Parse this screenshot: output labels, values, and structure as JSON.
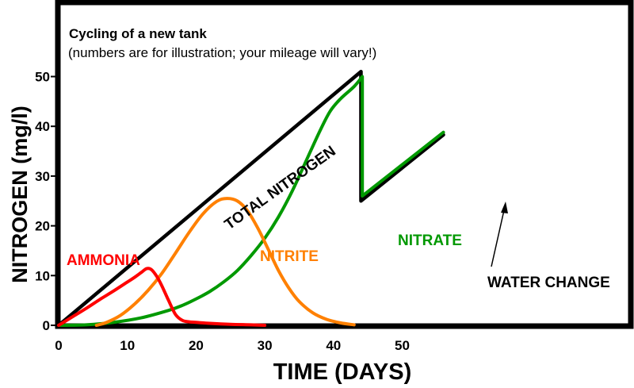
{
  "chart_data": {
    "type": "line",
    "title": "Cycling of a new tank",
    "subtitle": "(numbers are for illustration; your mileage will vary!)",
    "xlabel": "TIME (DAYS)",
    "ylabel": "NITROGEN (mg/l)",
    "xlim": [
      0,
      56
    ],
    "ylim": [
      0,
      53
    ],
    "xticks": [
      0,
      10,
      20,
      30,
      40,
      50
    ],
    "yticks": [
      0,
      10,
      20,
      30,
      40,
      50
    ],
    "grid": false,
    "legend": "inline labels",
    "series": [
      {
        "name": "TOTAL NITROGEN",
        "color": "#000000",
        "points": [
          [
            0,
            0
          ],
          [
            44,
            51
          ],
          [
            44,
            25
          ],
          [
            56,
            38.3
          ]
        ]
      },
      {
        "name": "AMMONIA",
        "color": "#ff0000",
        "points": [
          [
            0,
            0
          ],
          [
            2,
            1.7
          ],
          [
            4,
            3.4
          ],
          [
            6,
            5.2
          ],
          [
            8,
            6.9
          ],
          [
            10,
            8.7
          ],
          [
            11,
            9.6
          ],
          [
            12,
            10.6
          ],
          [
            12.8,
            11.4
          ],
          [
            13.5,
            11.2
          ],
          [
            14.3,
            9.8
          ],
          [
            15,
            8
          ],
          [
            16,
            5
          ],
          [
            17,
            2.2
          ],
          [
            18,
            1
          ],
          [
            19,
            0.7
          ],
          [
            20,
            0.6
          ],
          [
            22,
            0.4
          ],
          [
            25,
            0.2
          ],
          [
            28,
            0.1
          ],
          [
            30,
            0
          ]
        ]
      },
      {
        "name": "NITRITE",
        "color": "#ff8000",
        "points": [
          [
            5.5,
            0
          ],
          [
            7,
            0.6
          ],
          [
            9,
            2
          ],
          [
            11,
            4.2
          ],
          [
            13,
            7
          ],
          [
            15,
            10.4
          ],
          [
            17,
            14.5
          ],
          [
            19,
            18.7
          ],
          [
            21,
            22.4
          ],
          [
            23,
            24.9
          ],
          [
            24.5,
            25.5
          ],
          [
            26,
            25
          ],
          [
            27.5,
            23
          ],
          [
            29,
            19.5
          ],
          [
            30.5,
            15.3
          ],
          [
            32,
            11
          ],
          [
            33.5,
            7.5
          ],
          [
            35,
            4.8
          ],
          [
            37,
            2.5
          ],
          [
            39,
            1.2
          ],
          [
            41,
            0.5
          ],
          [
            43,
            0.1
          ]
        ]
      },
      {
        "name": "NITRATE",
        "color": "#009900",
        "points": [
          [
            0,
            0
          ],
          [
            4,
            0.1
          ],
          [
            8,
            0.6
          ],
          [
            12,
            1.5
          ],
          [
            16,
            3
          ],
          [
            18,
            4
          ],
          [
            20,
            5.3
          ],
          [
            22,
            6.8
          ],
          [
            24,
            8.7
          ],
          [
            26,
            11
          ],
          [
            28,
            14
          ],
          [
            30,
            17.5
          ],
          [
            32,
            21.8
          ],
          [
            34,
            27
          ],
          [
            36,
            33
          ],
          [
            38,
            39
          ],
          [
            39.5,
            43
          ],
          [
            41,
            45.5
          ],
          [
            43,
            48
          ],
          [
            44.2,
            50
          ],
          [
            44.2,
            26
          ],
          [
            56,
            38.8
          ]
        ]
      }
    ],
    "annotations": [
      {
        "text": "AMMONIA",
        "color": "#ff0000"
      },
      {
        "text": "NITRITE",
        "color": "#ff8000"
      },
      {
        "text": "NITRATE",
        "color": "#009900"
      },
      {
        "text": "TOTAL NITROGEN",
        "color": "#000000"
      },
      {
        "text": "WATER CHANGE",
        "color": "#000000",
        "arrow_to_day": 44
      }
    ]
  }
}
